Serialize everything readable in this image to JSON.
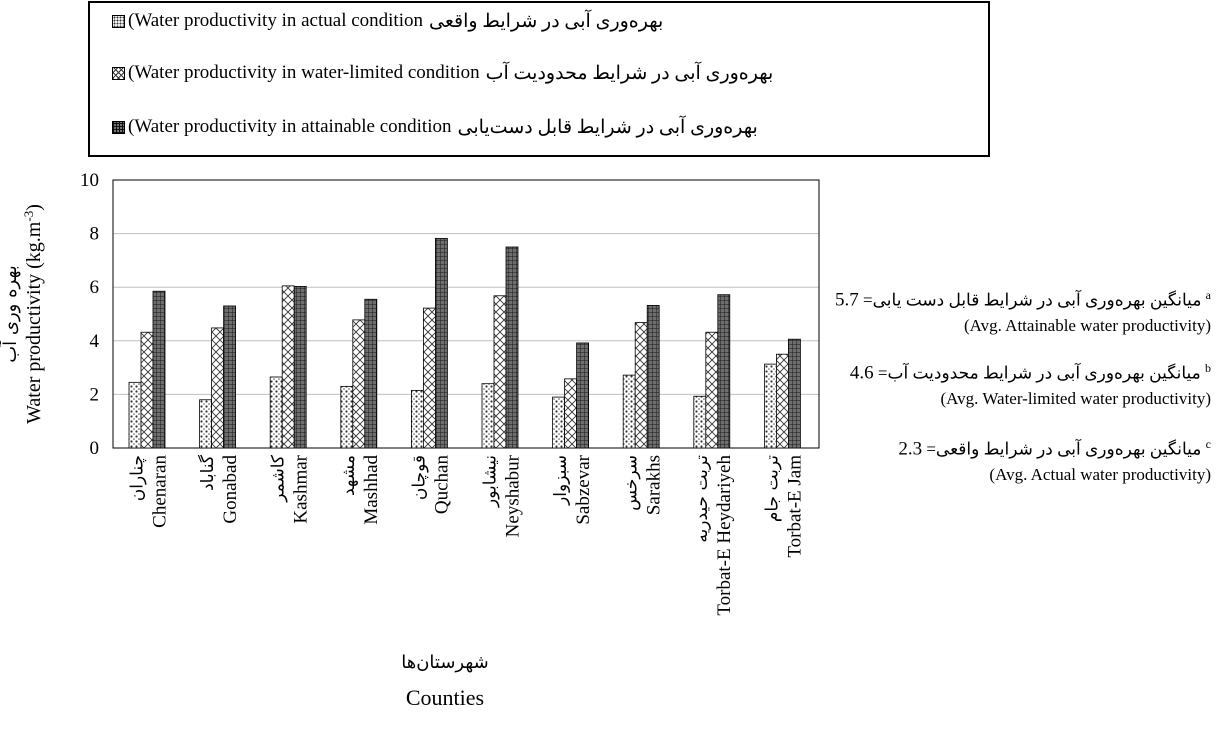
{
  "legend": [
    {
      "en": "(Water productivity in actual condition",
      "fa": "بهره‌وری آبی در شرایط واقعی"
    },
    {
      "en": "(Water productivity in water-limited condition",
      "fa": "بهره‌وری آبی در شرایط محدودیت آب"
    },
    {
      "en": "(Water productivity in attainable condition",
      "fa": "بهره‌وری آبی در شرایط قابل دست‌یابی"
    }
  ],
  "notes": [
    {
      "fa": "میانگین بهره‌وری آبی در شرایط قابل دست یابی=",
      "value": "5.7",
      "sup": "a",
      "en": "(Avg. Attainable water productivity)"
    },
    {
      "fa": "میانگین بهره‌وری آبی در شرایط محدودیت آب=",
      "value": "4.6",
      "sup": "b",
      "en": "(Avg. Water-limited water productivity)"
    },
    {
      "fa": "میانگین بهره‌وری آبی در شرایط واقعی=",
      "value": "2.3",
      "sup": "c",
      "en": "(Avg. Actual water productivity)"
    }
  ],
  "chart_data": {
    "type": "bar",
    "ylabel_en": "Water productivity (kg.m-3)",
    "ylabel_fa": "بهره وری آب",
    "xlabel_en": "Counties",
    "xlabel_fa": "شهرستان‌ها",
    "ylim": [
      0,
      10
    ],
    "yticks": [
      0,
      2,
      4,
      6,
      8,
      10
    ],
    "grid": true,
    "legend_position": "top",
    "categories": [
      "Chenaran",
      "Gonabad",
      "Kashmar",
      "Mashhad",
      "Quchan",
      "Neyshabur",
      "Sabzevar",
      "Sarakhs",
      "Torbat-E Heydariyeh",
      "Torbat-E Jam"
    ],
    "categories_fa": [
      "چناران",
      "گناباد",
      "کاشمر",
      "مشهد",
      "قوچان",
      "نیشابور",
      "سبزوار",
      "سرخس",
      "تربت حیدریه",
      "تربت جام"
    ],
    "series": [
      {
        "name": "Water productivity in actual condition",
        "pattern": "dots",
        "values": [
          2.45,
          1.8,
          2.65,
          2.3,
          2.15,
          2.4,
          1.9,
          2.72,
          1.93,
          3.13
        ]
      },
      {
        "name": "Water productivity in water-limited condition",
        "pattern": "cross",
        "values": [
          4.32,
          4.48,
          6.05,
          4.78,
          5.22,
          5.68,
          2.58,
          4.68,
          4.32,
          3.5
        ]
      },
      {
        "name": "Water productivity in attainable condition",
        "pattern": "grid",
        "values": [
          5.85,
          5.3,
          6.03,
          5.55,
          7.82,
          7.5,
          3.92,
          5.32,
          5.72,
          4.06
        ]
      }
    ]
  }
}
